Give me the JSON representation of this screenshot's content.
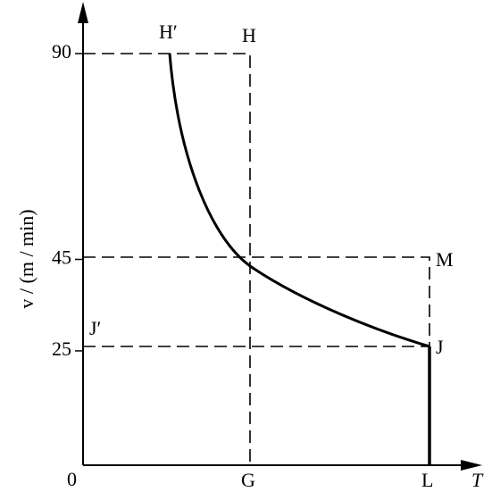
{
  "chart": {
    "y_axis_label": "v / (m / min)",
    "x_axis_label": "T",
    "yticks": [
      0,
      25,
      45,
      90
    ],
    "points": {
      "h_prime": "H′",
      "h": "H",
      "m": "M",
      "j": "J",
      "j_prime": "J′",
      "g": "G",
      "l": "L"
    }
  }
}
